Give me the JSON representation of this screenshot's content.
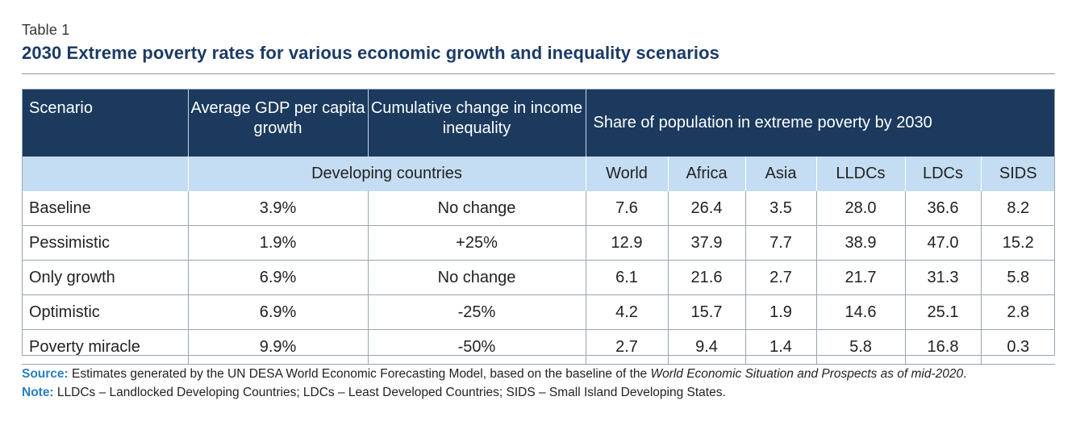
{
  "table_label": "Table 1",
  "title": "2030 Extreme poverty rates for various economic growth and inequality scenarios",
  "header": {
    "scenario": "Scenario",
    "gdp": "Average GDP per capita growth",
    "inequality": "Cumulative change in income inequality",
    "share": "Share of population in extreme poverty by 2030"
  },
  "subheader": {
    "group": "Developing countries",
    "regions": [
      "World",
      "Africa",
      "Asia",
      "LLDCs",
      "LDCs",
      "SIDS"
    ]
  },
  "rows": [
    {
      "scenario": "Baseline",
      "gdp": "3.9%",
      "inequality": "No change",
      "values": [
        "7.6",
        "26.4",
        "3.5",
        "28.0",
        "36.6",
        "8.2"
      ]
    },
    {
      "scenario": "Pessimistic",
      "gdp": "1.9%",
      "inequality": "+25%",
      "values": [
        "12.9",
        "37.9",
        "7.7",
        "38.9",
        "47.0",
        "15.2"
      ]
    },
    {
      "scenario": "Only growth",
      "gdp": "6.9%",
      "inequality": "No change",
      "values": [
        "6.1",
        "21.6",
        "2.7",
        "21.7",
        "31.3",
        "5.8"
      ]
    },
    {
      "scenario": "Optimistic",
      "gdp": "6.9%",
      "inequality": "-25%",
      "values": [
        "4.2",
        "15.7",
        "1.9",
        "14.6",
        "25.1",
        "2.8"
      ]
    },
    {
      "scenario": "Poverty miracle",
      "gdp": "9.9%",
      "inequality": "-50%",
      "values": [
        "2.7",
        "9.4",
        "1.4",
        "5.8",
        "16.8",
        "0.3"
      ]
    }
  ],
  "source": {
    "label": "Source:",
    "text": " Estimates generated by the UN DESA World Economic Forecasting Model, based on the baseline of the ",
    "italic": "World Economic Situation and Prospects as of mid-2020",
    "end": "."
  },
  "note": {
    "label": "Note:",
    "text": " LLDCs – Landlocked Developing Countries; LDCs – Least Developed Countries; SIDS – Small Island Developing States."
  },
  "colors": {
    "header_bg": "#1b3a5e",
    "subheader_bg": "#c4ddf2",
    "title": "#1b3a66",
    "note_label": "#2b7dc1"
  }
}
